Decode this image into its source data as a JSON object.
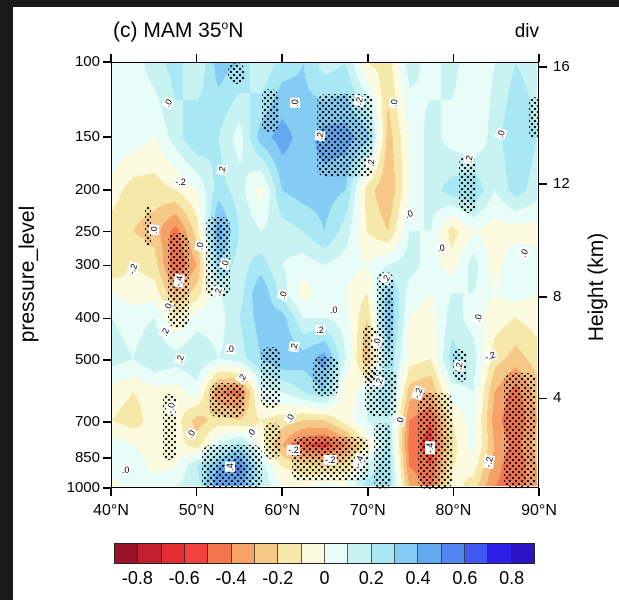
{
  "figure": {
    "title": "(c) MAM 35°N",
    "units_label": "div"
  },
  "chart_data": {
    "type": "heatmap",
    "title": "(c) MAM 35°N",
    "units_label": "div",
    "xlabel": "",
    "ylabel": "pressure_level",
    "y2label": "Height (km)",
    "x_axis": {
      "tick_values": [
        40,
        50,
        60,
        70,
        80,
        90
      ],
      "tick_labels": [
        "40°N",
        "50°N",
        "60°N",
        "70°N",
        "80°N",
        "90°N"
      ],
      "range": [
        40,
        90
      ]
    },
    "y_axis": {
      "scale": "log-pressure-hPa",
      "tick_values": [
        100,
        150,
        200,
        250,
        300,
        400,
        500,
        700,
        850,
        1000
      ],
      "range": [
        100,
        1000
      ]
    },
    "y2_axis": {
      "label": "Height (km)",
      "tick_values": [
        4,
        8,
        12,
        16
      ]
    },
    "lats": [
      40,
      42.5,
      45,
      47.5,
      50,
      52.5,
      55,
      57.5,
      60,
      62.5,
      65,
      67.5,
      70,
      72.5,
      75,
      77.5,
      80,
      82.5,
      85,
      87.5,
      90
    ],
    "pressure_levels": [
      100,
      150,
      200,
      250,
      300,
      350,
      400,
      500,
      600,
      700,
      800,
      900,
      1000
    ],
    "values": [
      [
        0.1,
        0.05,
        0.15,
        0.25,
        0.1,
        0.35,
        0.3,
        0.1,
        0.25,
        0.3,
        0.15,
        0.2,
        -0.1,
        -0.15,
        0.15,
        0.05,
        0.15,
        0.0,
        0.1,
        0.2,
        0.15
      ],
      [
        0.1,
        0.05,
        0.0,
        0.15,
        0.3,
        0.2,
        0.05,
        0.35,
        0.45,
        0.35,
        0.45,
        0.45,
        0.35,
        -0.25,
        0.0,
        0.15,
        0.05,
        0.0,
        0.15,
        0.3,
        0.2
      ],
      [
        -0.05,
        -0.15,
        -0.15,
        -0.1,
        0.0,
        0.25,
        0.15,
        -0.05,
        0.3,
        0.35,
        0.35,
        0.3,
        -0.15,
        -0.3,
        0.0,
        0.15,
        0.25,
        0.3,
        0.1,
        0.25,
        0.15
      ],
      [
        -0.15,
        -0.2,
        -0.25,
        -0.45,
        -0.15,
        0.45,
        0.2,
        0.1,
        0.15,
        0.2,
        0.3,
        0.15,
        -0.1,
        -0.2,
        0.1,
        0.1,
        -0.15,
        0.0,
        -0.05,
        -0.05,
        -0.05
      ],
      [
        -0.2,
        -0.1,
        -0.15,
        -0.5,
        -0.3,
        0.3,
        0.15,
        0.25,
        0.1,
        0.05,
        0.1,
        0.05,
        0.0,
        0.1,
        0.15,
        0.05,
        -0.05,
        0.15,
        -0.05,
        0.1,
        0.05
      ],
      [
        0.0,
        -0.05,
        -0.05,
        -0.3,
        -0.15,
        0.1,
        0.15,
        0.4,
        0.15,
        -0.05,
        0.05,
        0.0,
        -0.1,
        0.35,
        0.05,
        0.0,
        0.1,
        0.1,
        0.0,
        0.05,
        0.0
      ],
      [
        0.1,
        0.05,
        0.1,
        -0.1,
        0.05,
        0.05,
        0.2,
        0.35,
        0.35,
        0.1,
        0.1,
        0.05,
        -0.2,
        0.4,
        0.0,
        -0.05,
        0.15,
        0.05,
        -0.05,
        -0.1,
        -0.05
      ],
      [
        0.15,
        0.1,
        0.2,
        0.15,
        0.2,
        0.1,
        0.15,
        0.3,
        0.4,
        0.35,
        0.45,
        0.1,
        -0.3,
        0.3,
        -0.05,
        -0.1,
        0.25,
        0.15,
        -0.15,
        -0.25,
        -0.15
      ],
      [
        -0.05,
        -0.1,
        -0.05,
        -0.05,
        0.05,
        -0.4,
        -0.45,
        0.05,
        0.1,
        0.2,
        0.3,
        -0.1,
        0.1,
        0.3,
        -0.25,
        -0.3,
        0.05,
        0.1,
        -0.3,
        -0.45,
        -0.25
      ],
      [
        -0.1,
        -0.15,
        -0.05,
        -0.05,
        -0.25,
        -0.15,
        -0.2,
        -0.1,
        -0.15,
        -0.2,
        -0.2,
        -0.05,
        0.1,
        0.2,
        -0.4,
        -0.5,
        -0.1,
        0.05,
        -0.35,
        -0.5,
        -0.3
      ],
      [
        0.05,
        0.0,
        -0.1,
        -0.05,
        -0.15,
        0.1,
        0.25,
        -0.05,
        -0.3,
        -0.5,
        -0.55,
        -0.4,
        -0.1,
        0.25,
        -0.45,
        -0.55,
        -0.15,
        0.05,
        -0.3,
        -0.45,
        -0.25
      ],
      [
        0.1,
        0.1,
        -0.05,
        0.0,
        0.2,
        0.4,
        0.55,
        0.15,
        -0.1,
        -0.15,
        -0.2,
        -0.15,
        0.1,
        0.3,
        -0.4,
        -0.5,
        -0.1,
        -0.05,
        -0.35,
        -0.5,
        -0.3
      ],
      [
        -0.05,
        0.05,
        0.1,
        0.1,
        0.15,
        0.5,
        0.45,
        0.2,
        0.0,
        -0.05,
        0.05,
        0.0,
        0.25,
        0.3,
        -0.3,
        -0.45,
        -0.05,
        -0.15,
        -0.4,
        -0.45,
        -0.35
      ]
    ],
    "contour_levels": {
      "min": -0.8,
      "max": 0.8,
      "step": 0.1
    },
    "colorbar": {
      "tick_labels": [
        "-0.8",
        "-0.6",
        "-0.4",
        "-0.2",
        "0",
        "0.2",
        "0.4",
        "0.6",
        "0.8"
      ],
      "colors": [
        "#9b1127",
        "#c01f2e",
        "#e22e33",
        "#ef413e",
        "#f3764f",
        "#f5a167",
        "#f6c888",
        "#f6e8a9",
        "#fdfbdf",
        "#e8fdf8",
        "#c9f3f2",
        "#a8e8f4",
        "#84ccf4",
        "#64a8f0",
        "#5386ef",
        "#4058f0",
        "#2c20e8",
        "#2b14c4"
      ]
    },
    "contour_labels": [
      {
        "text": ".0",
        "lat": 46.6,
        "p": 124,
        "rot": -60
      },
      {
        "text": ".0",
        "lat": 61.4,
        "p": 124,
        "rot": -90
      },
      {
        "text": ".2",
        "lat": 68.8,
        "p": 123,
        "rot": -75
      },
      {
        "text": ".0",
        "lat": 72.9,
        "p": 124,
        "rot": -80
      },
      {
        "text": ".0",
        "lat": 85.4,
        "p": 147,
        "rot": -70
      },
      {
        "text": "-.2",
        "lat": 48.0,
        "p": 190,
        "rot": 0
      },
      {
        "text": ".2",
        "lat": 52.9,
        "p": 178,
        "rot": -80
      },
      {
        "text": ".2",
        "lat": 64.3,
        "p": 148,
        "rot": -80
      },
      {
        "text": ".2",
        "lat": 70.2,
        "p": 172,
        "rot": -85
      },
      {
        "text": ".2",
        "lat": 81.7,
        "p": 168,
        "rot": -80
      },
      {
        "text": ".0",
        "lat": 88.1,
        "p": 279,
        "rot": -65
      },
      {
        "text": ".0",
        "lat": 74.7,
        "p": 226,
        "rot": -20
      },
      {
        "text": ".0",
        "lat": 78.4,
        "p": 272,
        "rot": -10
      },
      {
        "text": ".0",
        "lat": 44.9,
        "p": 246,
        "rot": -85
      },
      {
        "text": ".0",
        "lat": 50.3,
        "p": 269,
        "rot": -80
      },
      {
        "text": ".0",
        "lat": 53.2,
        "p": 297,
        "rot": -75
      },
      {
        "text": "-.2",
        "lat": 42.5,
        "p": 305,
        "rot": -70
      },
      {
        "text": "-.4",
        "lat": 47.8,
        "p": 325,
        "rot": -80
      },
      {
        "text": ".2",
        "lat": 52.4,
        "p": 345,
        "rot": -75
      },
      {
        "text": ".0",
        "lat": 46.6,
        "p": 374,
        "rot": -70
      },
      {
        "text": ".0",
        "lat": 60.0,
        "p": 350,
        "rot": -70
      },
      {
        "text": ".2",
        "lat": 46.2,
        "p": 427,
        "rot": -65
      },
      {
        "text": ".2",
        "lat": 48.0,
        "p": 495,
        "rot": -75
      },
      {
        "text": ".0",
        "lat": 53.8,
        "p": 470,
        "rot": 0
      },
      {
        "text": ".2",
        "lat": 55.2,
        "p": 548,
        "rot": -60
      },
      {
        "text": ".2",
        "lat": 61.3,
        "p": 465,
        "rot": -80
      },
      {
        "text": ".2",
        "lat": 64.3,
        "p": 423,
        "rot": 0
      },
      {
        "text": ".0",
        "lat": 65.9,
        "p": 379,
        "rot": 0
      },
      {
        "text": ".2",
        "lat": 72.0,
        "p": 322,
        "rot": -60
      },
      {
        "text": ".0",
        "lat": 71.0,
        "p": 452,
        "rot": -70
      },
      {
        "text": ".2",
        "lat": 80.5,
        "p": 515,
        "rot": -80
      },
      {
        "text": ".0",
        "lat": 82.8,
        "p": 397,
        "rot": -75
      },
      {
        "text": "-.2",
        "lat": 84.2,
        "p": 488,
        "rot": -20
      },
      {
        "text": ".2",
        "lat": 71.2,
        "p": 562,
        "rot": -70
      },
      {
        "text": "-.2",
        "lat": 75.8,
        "p": 595,
        "rot": -70
      },
      {
        "text": "-.0",
        "lat": 46.9,
        "p": 645,
        "rot": -80
      },
      {
        "text": ".0",
        "lat": 49.2,
        "p": 743,
        "rot": -60
      },
      {
        "text": ".0",
        "lat": 56.2,
        "p": 740,
        "rot": -45
      },
      {
        "text": ".0",
        "lat": 60.8,
        "p": 680,
        "rot": -60
      },
      {
        "text": ".0",
        "lat": 73.7,
        "p": 693,
        "rot": -75
      },
      {
        "text": "-.2",
        "lat": 61.2,
        "p": 810,
        "rot": 0
      },
      {
        "text": "-.2",
        "lat": 65.5,
        "p": 855,
        "rot": 0
      },
      {
        "text": "-.4",
        "lat": 68.8,
        "p": 861,
        "rot": -70
      },
      {
        "text": ".4",
        "lat": 53.8,
        "p": 888,
        "rot": -90
      },
      {
        "text": "-.4",
        "lat": 77.2,
        "p": 800,
        "rot": -90
      },
      {
        "text": "-.2",
        "lat": 84.0,
        "p": 862,
        "rot": -80
      },
      {
        "text": ".0",
        "lat": 41.6,
        "p": 900,
        "rot": 0
      }
    ],
    "stipple_regions": [
      {
        "lat": [
          46.5,
          49.0
        ],
        "p": [
          250,
          420
        ]
      },
      {
        "lat": [
          51.0,
          53.8
        ],
        "p": [
          230,
          355
        ]
      },
      {
        "lat": [
          43.8,
          44.6
        ],
        "p": [
          215,
          270
        ]
      },
      {
        "lat": [
          53.5,
          55.5
        ],
        "p": [
          100,
          112
        ]
      },
      {
        "lat": [
          57.5,
          59.5
        ],
        "p": [
          115,
          145
        ]
      },
      {
        "lat": [
          64.0,
          70.5
        ],
        "p": [
          118,
          185
        ]
      },
      {
        "lat": [
          88.7,
          90.0
        ],
        "p": [
          120,
          150
        ]
      },
      {
        "lat": [
          80.5,
          82.5
        ],
        "p": [
          165,
          225
        ]
      },
      {
        "lat": [
          71.0,
          73.0
        ],
        "p": [
          310,
          520
        ]
      },
      {
        "lat": [
          69.3,
          71.0
        ],
        "p": [
          415,
          560
        ]
      },
      {
        "lat": [
          57.4,
          59.6
        ],
        "p": [
          465,
          645
        ]
      },
      {
        "lat": [
          63.5,
          66.5
        ],
        "p": [
          490,
          605
        ]
      },
      {
        "lat": [
          69.6,
          73.3
        ],
        "p": [
          525,
          675
        ]
      },
      {
        "lat": [
          79.8,
          81.5
        ],
        "p": [
          470,
          560
        ]
      },
      {
        "lat": [
          51.5,
          55.5
        ],
        "p": [
          565,
          680
        ]
      },
      {
        "lat": [
          46.0,
          47.5
        ],
        "p": [
          600,
          855
        ]
      },
      {
        "lat": [
          61.0,
          70.0
        ],
        "p": [
          755,
          960
        ]
      },
      {
        "lat": [
          50.5,
          57.5
        ],
        "p": [
          790,
          1000
        ]
      },
      {
        "lat": [
          57.8,
          59.8
        ],
        "p": [
          700,
          850
        ]
      },
      {
        "lat": [
          70.6,
          72.6
        ],
        "p": [
          700,
          1000
        ]
      },
      {
        "lat": [
          75.8,
          79.8
        ],
        "p": [
          595,
          1000
        ]
      },
      {
        "lat": [
          85.8,
          89.5
        ],
        "p": [
          535,
          1000
        ]
      }
    ]
  }
}
